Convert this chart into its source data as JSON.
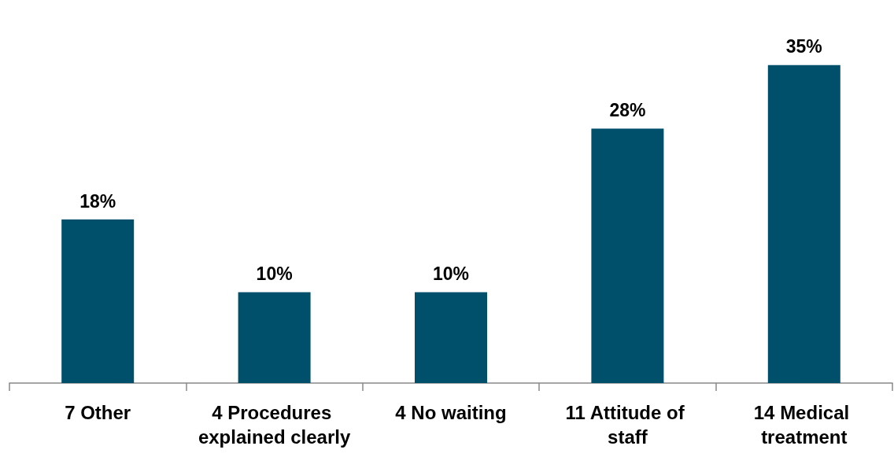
{
  "chart_data": {
    "type": "bar",
    "categories": [
      "7 Other",
      "4 Procedures explained clearly",
      "4 No waiting",
      "11 Attitude of staff",
      "14 Medical treatment"
    ],
    "values": [
      18,
      10,
      10,
      28,
      35
    ],
    "value_labels": [
      "18%",
      "10%",
      "10%",
      "28%",
      "35%"
    ],
    "color": "#004f6b"
  }
}
